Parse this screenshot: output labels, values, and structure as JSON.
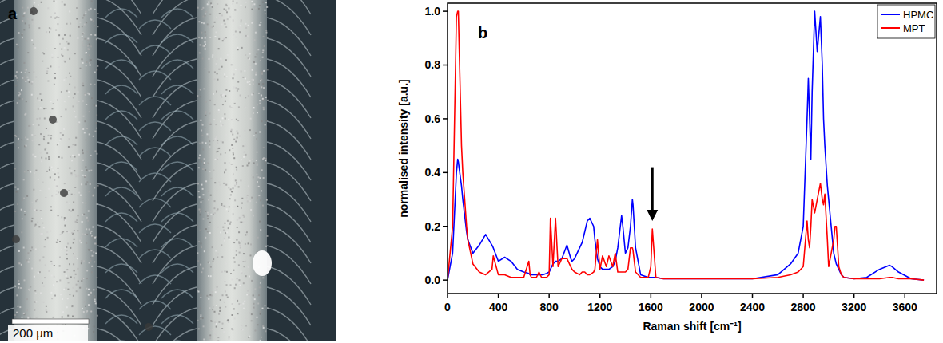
{
  "image_panel": {
    "panel_label": "a",
    "scale_bar_label": "200 µm"
  },
  "chart_data": {
    "type": "line",
    "panel_label": "b",
    "x_label": "Raman shift [cm⁻¹]",
    "y_label": "normalised intensity [a.u.]",
    "x": [
      0,
      40,
      70,
      80,
      85,
      110,
      120,
      150,
      160,
      200,
      250,
      300,
      350,
      360,
      400,
      450,
      500,
      550,
      600,
      640,
      650,
      660,
      700,
      720,
      740,
      750,
      780,
      800,
      810,
      830,
      850,
      870,
      900,
      940,
      970,
      980,
      1000,
      1040,
      1060,
      1080,
      1100,
      1120,
      1150,
      1160,
      1180,
      1200,
      1220,
      1250,
      1270,
      1300,
      1320,
      1340,
      1370,
      1380,
      1400,
      1420,
      1440,
      1455,
      1460,
      1480,
      1520,
      1580,
      1600,
      1612,
      1640,
      1700,
      2000,
      2400,
      2600,
      2700,
      2760,
      2800,
      2830,
      2840,
      2850,
      2860,
      2870,
      2890,
      2910,
      2935,
      2950,
      2960,
      2970,
      2990,
      3000,
      3040,
      3050,
      3060,
      3080,
      3100,
      3120,
      3200,
      3300,
      3400,
      3480,
      3500,
      3550,
      3650,
      3750
    ],
    "series": [
      {
        "name": "HPMC",
        "color": "#0000ff",
        "values": [
          0.0,
          0.1,
          0.4,
          0.45,
          0.44,
          0.35,
          0.3,
          0.18,
          0.15,
          0.1,
          0.13,
          0.17,
          0.13,
          0.12,
          0.07,
          0.085,
          0.07,
          0.04,
          0.03,
          0.025,
          0.02,
          0.02,
          0.02,
          0.02,
          0.02,
          0.02,
          0.025,
          0.03,
          0.04,
          0.06,
          0.07,
          0.07,
          0.08,
          0.13,
          0.08,
          0.07,
          0.08,
          0.12,
          0.14,
          0.18,
          0.22,
          0.23,
          0.2,
          0.15,
          0.08,
          0.05,
          0.04,
          0.04,
          0.04,
          0.05,
          0.07,
          0.12,
          0.24,
          0.2,
          0.1,
          0.12,
          0.2,
          0.3,
          0.28,
          0.12,
          0.02,
          0.01,
          0.01,
          0.01,
          0.01,
          0.005,
          0.005,
          0.005,
          0.02,
          0.06,
          0.1,
          0.2,
          0.6,
          0.75,
          0.6,
          0.45,
          0.7,
          1.0,
          0.85,
          0.98,
          0.8,
          0.6,
          0.5,
          0.35,
          0.3,
          0.1,
          0.08,
          0.06,
          0.04,
          0.02,
          0.01,
          0.005,
          0.01,
          0.04,
          0.055,
          0.05,
          0.03,
          0.005,
          0.0
        ]
      },
      {
        "name": "MPT",
        "color": "#ff0000",
        "values": [
          0.0,
          0.2,
          0.98,
          1.0,
          1.0,
          0.5,
          0.4,
          0.2,
          0.15,
          0.06,
          0.03,
          0.02,
          0.04,
          0.09,
          0.02,
          0.02,
          0.01,
          0.01,
          0.01,
          0.07,
          0.02,
          0.01,
          0.01,
          0.03,
          0.01,
          0.01,
          0.01,
          0.02,
          0.23,
          0.05,
          0.23,
          0.05,
          0.08,
          0.08,
          0.05,
          0.04,
          0.03,
          0.02,
          0.03,
          0.03,
          0.02,
          0.02,
          0.03,
          0.04,
          0.15,
          0.04,
          0.09,
          0.05,
          0.09,
          0.05,
          0.1,
          0.03,
          0.03,
          0.03,
          0.03,
          0.04,
          0.12,
          0.12,
          0.11,
          0.03,
          0.01,
          0.01,
          0.05,
          0.19,
          0.01,
          0.005,
          0.005,
          0.005,
          0.01,
          0.02,
          0.03,
          0.05,
          0.22,
          0.15,
          0.12,
          0.2,
          0.3,
          0.25,
          0.3,
          0.36,
          0.3,
          0.28,
          0.32,
          0.15,
          0.05,
          0.15,
          0.2,
          0.2,
          0.05,
          0.02,
          0.01,
          0.005,
          0.005,
          0.005,
          0.01,
          0.01,
          0.005,
          0.005,
          0.0
        ]
      }
    ],
    "xlim": [
      0,
      3850
    ],
    "xticks": [
      0,
      400,
      800,
      1200,
      1600,
      2000,
      2400,
      2800,
      3200,
      3600
    ],
    "ylim": [
      -0.05,
      1.03
    ],
    "yticks": [
      {
        "value": 0,
        "label": "0.0"
      },
      0.2,
      0.4,
      0.6,
      0.8,
      {
        "value": 1,
        "label": "1.0"
      }
    ],
    "legend": "upper right",
    "grid": false,
    "annotations": [
      {
        "x": 1612,
        "y_start": 0.42,
        "y_end": 0.22
      }
    ]
  }
}
